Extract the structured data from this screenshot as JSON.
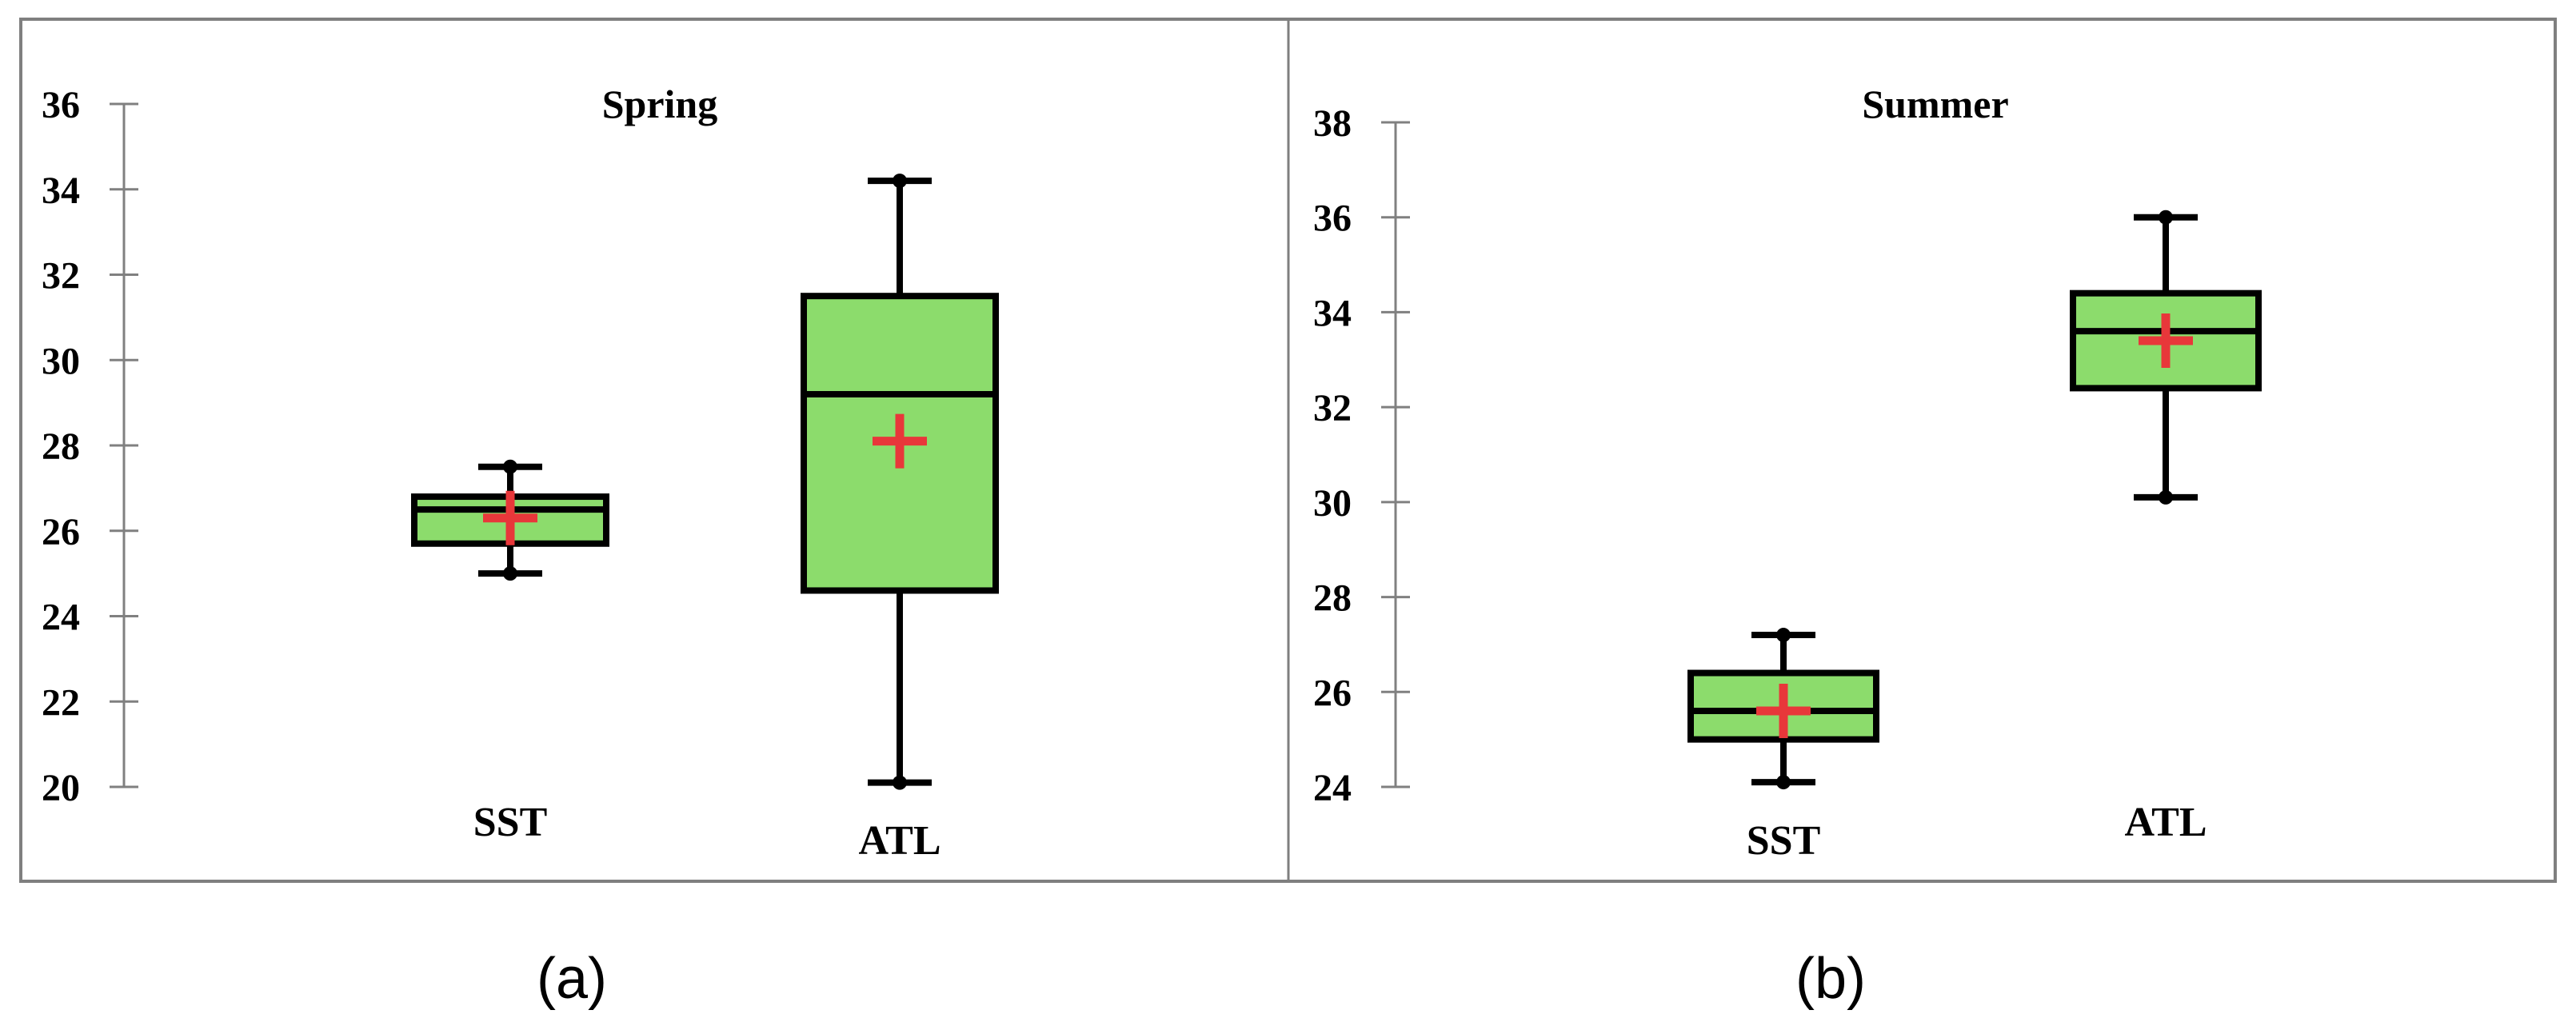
{
  "colors": {
    "box_fill": "#8CDC6C",
    "box_stroke": "#000000",
    "mean_marker": "#E8373A",
    "frame": "#7F7F7F",
    "axis": "#808080"
  },
  "chart_data": [
    {
      "type": "box",
      "title": "Spring",
      "caption": "(a)",
      "categories": [
        "SST",
        "ATL"
      ],
      "ylim": [
        20,
        36
      ],
      "yticks": [
        "20",
        "22",
        "24",
        "26",
        "28",
        "30",
        "32",
        "34",
        "36"
      ],
      "grid": false,
      "boxes": [
        {
          "name": "SST",
          "min": 25.0,
          "q1": 25.7,
          "median": 26.5,
          "q3": 26.8,
          "max": 27.5,
          "mean": 26.3
        },
        {
          "name": "ATL",
          "min": 20.1,
          "q1": 24.6,
          "median": 29.2,
          "q3": 31.5,
          "max": 34.2,
          "mean": 28.1
        }
      ]
    },
    {
      "type": "box",
      "title": "Summer",
      "caption": "(b)",
      "categories": [
        "SST",
        "ATL"
      ],
      "ylim": [
        24,
        38
      ],
      "yticks": [
        "24",
        "26",
        "28",
        "30",
        "32",
        "34",
        "36",
        "38"
      ],
      "grid": false,
      "boxes": [
        {
          "name": "SST",
          "min": 24.1,
          "q1": 25.0,
          "median": 25.6,
          "q3": 26.4,
          "max": 27.2,
          "mean": 25.6
        },
        {
          "name": "ATL",
          "min": 30.1,
          "q1": 32.4,
          "median": 33.6,
          "q3": 34.4,
          "max": 36.0,
          "mean": 33.4
        }
      ]
    }
  ]
}
